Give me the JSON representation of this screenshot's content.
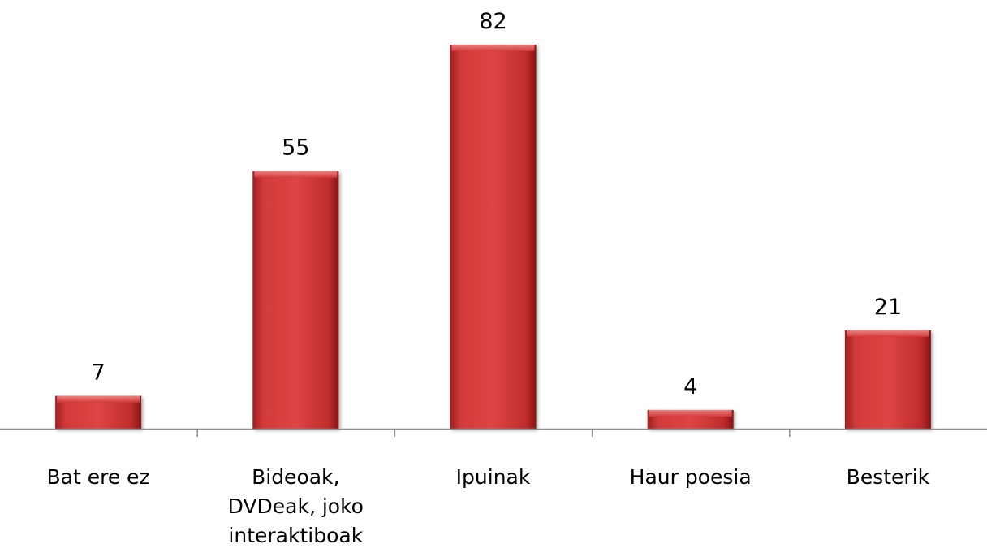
{
  "chart_data": {
    "type": "bar",
    "categories": [
      [
        "Bat ere ez"
      ],
      [
        "Bideoak,",
        "DVDeak, joko",
        "interaktiboak"
      ],
      [
        "Ipuinak"
      ],
      [
        "Haur poesia"
      ],
      [
        "Besterik"
      ]
    ],
    "values": [
      7,
      55,
      82,
      4,
      21
    ],
    "value_labels": [
      "7",
      "55",
      "82",
      "4",
      "21"
    ],
    "ylim": [
      0,
      82
    ],
    "grid": false,
    "colors": {
      "bar": "#c62b2b",
      "bar_light": "#e85a5a",
      "bar_dark": "#8e1a1a",
      "axis": "#8c8c8c"
    }
  }
}
